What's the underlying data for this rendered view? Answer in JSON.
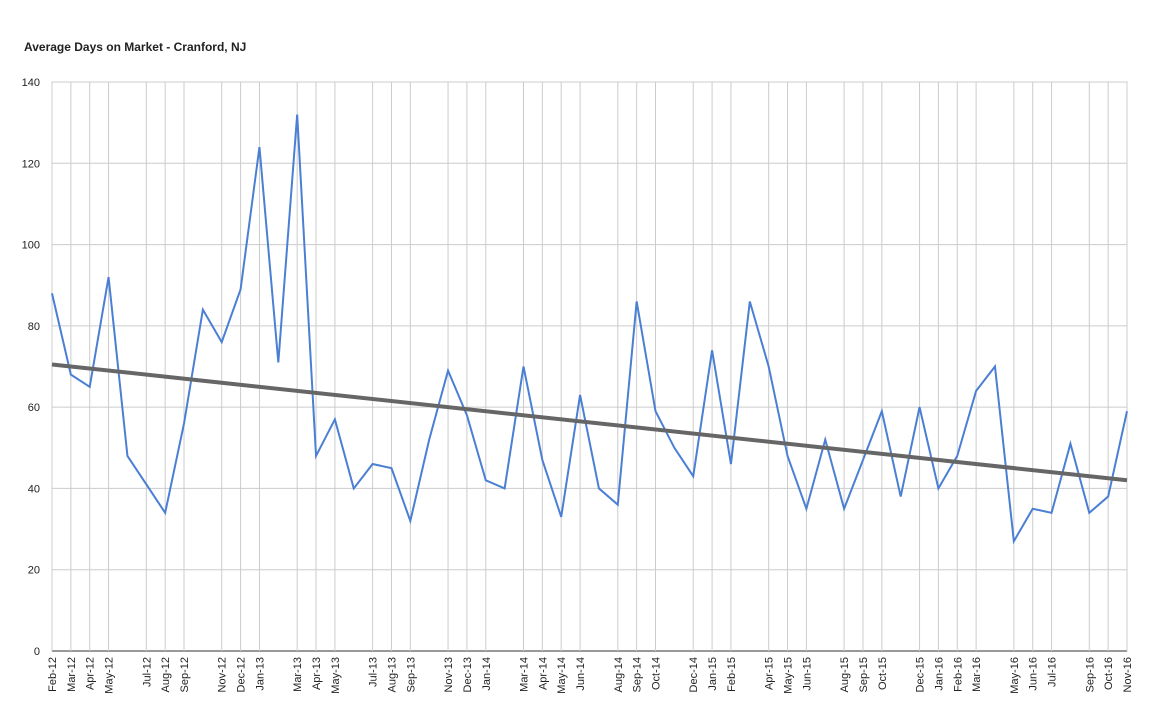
{
  "chart_data": {
    "type": "line",
    "title": "Average Days on Market - Cranford, NJ",
    "categories": [
      "Feb-12",
      "Mar-12",
      "Apr-12",
      "May-12",
      null,
      "Jul-12",
      "Aug-12",
      "Sep-12",
      null,
      "Nov-12",
      "Dec-12",
      "Jan-13",
      null,
      "Mar-13",
      "Apr-13",
      "May-13",
      null,
      "Jul-13",
      "Aug-13",
      "Sep-13",
      null,
      "Nov-13",
      "Dec-13",
      "Jan-14",
      null,
      "Mar-14",
      "Apr-14",
      "May-14",
      "Jun-14",
      null,
      "Aug-14",
      "Sep-14",
      "Oct-14",
      null,
      "Dec-14",
      "Jan-15",
      "Feb-15",
      null,
      "Apr-15",
      "May-15",
      "Jun-15",
      null,
      "Aug-15",
      "Sep-15",
      "Oct-15",
      null,
      "Dec-15",
      "Jan-16",
      "Feb-16",
      "Mar-16",
      null,
      "May-16",
      "Jun-16",
      "Jul-16",
      null,
      "Sep-16",
      "Oct-16",
      "Nov-16"
    ],
    "values": [
      88,
      68,
      65,
      92,
      48,
      41,
      34,
      56,
      84,
      76,
      89,
      124,
      71,
      132,
      48,
      57,
      40,
      46,
      45,
      32,
      52,
      69,
      58,
      42,
      40,
      70,
      47,
      33,
      63,
      40,
      36,
      86,
      59,
      50,
      43,
      74,
      46,
      86,
      70,
      48,
      35,
      52,
      35,
      47,
      59,
      38,
      60,
      40,
      48,
      64,
      70,
      27,
      35,
      34,
      51,
      34,
      38,
      59
    ],
    "color": "#4a7fd4",
    "trendline": {
      "start": 70.5,
      "end": 42,
      "color": "#666666"
    },
    "ylim": [
      0,
      140
    ],
    "yticks": [
      0,
      20,
      40,
      60,
      80,
      100,
      120,
      140
    ],
    "grid": true
  }
}
